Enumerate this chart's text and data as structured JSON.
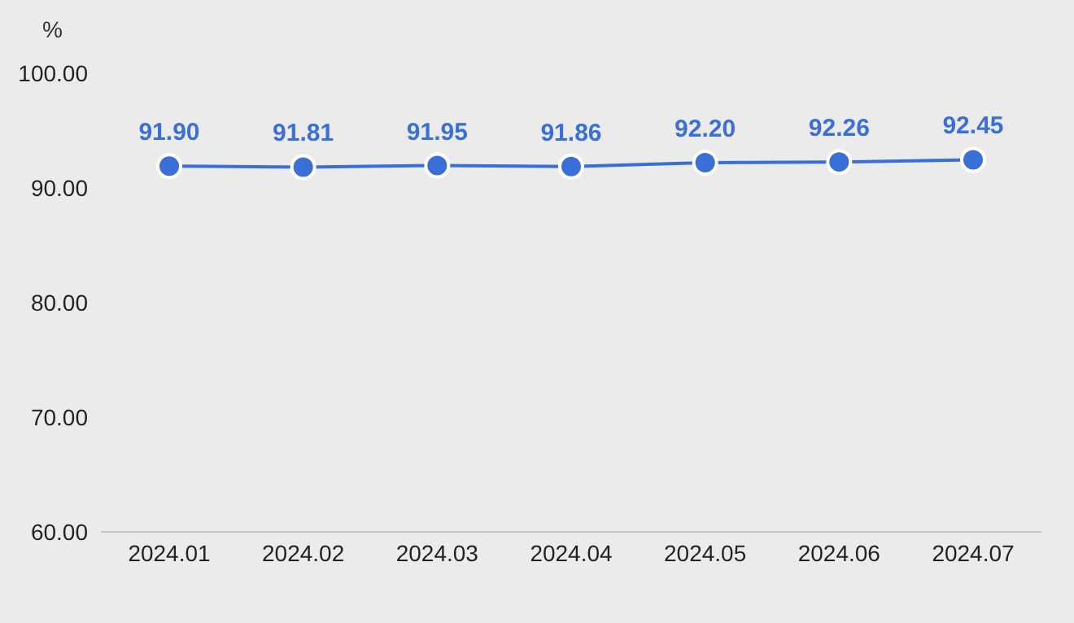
{
  "chart_data": {
    "type": "line",
    "ylabel": "%",
    "categories": [
      "2024.01",
      "2024.02",
      "2024.03",
      "2024.04",
      "2024.05",
      "2024.06",
      "2024.07"
    ],
    "series": [
      {
        "color": "#3b6fd8",
        "values": [
          91.9,
          91.81,
          91.95,
          91.86,
          92.2,
          92.26,
          92.45
        ],
        "value_labels": [
          "91.90",
          "91.81",
          "91.95",
          "91.86",
          "92.20",
          "92.26",
          "92.45"
        ]
      }
    ],
    "ylim": [
      60,
      100
    ],
    "yticks": [
      {
        "value": 60,
        "label": "60.00"
      },
      {
        "value": 70,
        "label": "70.00"
      },
      {
        "value": 80,
        "label": "80.00"
      },
      {
        "value": 90,
        "label": "90.00"
      },
      {
        "value": 100,
        "label": "100.00"
      }
    ],
    "grid": false,
    "legend": false,
    "marker": "circle",
    "line_style": "solid"
  }
}
